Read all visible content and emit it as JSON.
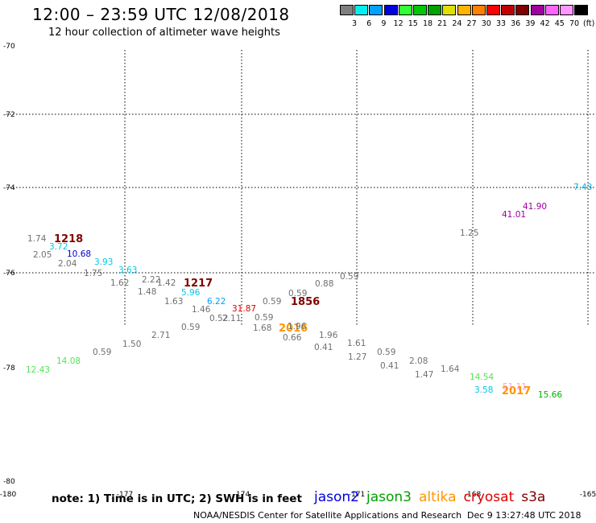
{
  "header": {
    "title": "12:00 – 23:59 UTC 12/08/2018",
    "subtitle": "12 hour collection of altimeter wave heights"
  },
  "legend": {
    "colors": [
      "#7f7f7f",
      "#00f0f0",
      "#00a0ff",
      "#0000e0",
      "#32ff32",
      "#00c800",
      "#00a000",
      "#e0e000",
      "#ffb400",
      "#ff8000",
      "#ff0000",
      "#c00000",
      "#800000",
      "#a000a0",
      "#ff64ff",
      "#ff96ff",
      "#000000"
    ],
    "labels": [
      "3",
      "6",
      "9",
      "12",
      "15",
      "18",
      "21",
      "24",
      "27",
      "30",
      "33",
      "36",
      "39",
      "42",
      "45",
      "70",
      "(ft)"
    ]
  },
  "axes": {
    "lat_labels": [
      "-70",
      "-72",
      "-74",
      "-76",
      "-78",
      "-80"
    ],
    "lon_labels": [
      "-180",
      "-177",
      "-174",
      "-171",
      "-168",
      "-165"
    ]
  },
  "observations": [
    {
      "text": "1.74",
      "color": "#707070"
    },
    {
      "text": "1218",
      "color": "#800000"
    },
    {
      "text": "3.72",
      "color": "#00c8e6"
    },
    {
      "text": "2.05",
      "color": "#707070"
    },
    {
      "text": "10.68",
      "color": "#0000c8"
    },
    {
      "text": "2.04",
      "color": "#707070"
    },
    {
      "text": "3.93",
      "color": "#00c8e6"
    },
    {
      "text": "1.75",
      "color": "#707070"
    },
    {
      "text": "3.63",
      "color": "#00c8e6"
    },
    {
      "text": "1.62",
      "color": "#707070"
    },
    {
      "text": "2.22",
      "color": "#707070"
    },
    {
      "text": "1.42",
      "color": "#707070"
    },
    {
      "text": "1217",
      "color": "#800000"
    },
    {
      "text": "1.48",
      "color": "#707070"
    },
    {
      "text": "5.96",
      "color": "#00c8e6"
    },
    {
      "text": "1.63",
      "color": "#707070"
    },
    {
      "text": "6.22",
      "color": "#00a0ff"
    },
    {
      "text": "1.46",
      "color": "#707070"
    },
    {
      "text": "0.52",
      "color": "#707070"
    },
    {
      "text": "2.11",
      "color": "#707070"
    },
    {
      "text": "31.87",
      "color": "#e00000"
    },
    {
      "text": "1856",
      "color": "#800000"
    },
    {
      "text": "0.59",
      "color": "#707070"
    },
    {
      "text": "0.59",
      "color": "#707070"
    },
    {
      "text": "0.59",
      "color": "#707070"
    },
    {
      "text": "0.88",
      "color": "#707070"
    },
    {
      "text": "0.59",
      "color": "#707070"
    },
    {
      "text": "0.59",
      "color": "#707070"
    },
    {
      "text": "1.68",
      "color": "#707070"
    },
    {
      "text": "2016",
      "color": "#ff9600"
    },
    {
      "text": "1.96",
      "color": "#707070"
    },
    {
      "text": "1.96",
      "color": "#707070"
    },
    {
      "text": "0.66",
      "color": "#707070"
    },
    {
      "text": "2.71",
      "color": "#707070"
    },
    {
      "text": "1.50",
      "color": "#707070"
    },
    {
      "text": "0.59",
      "color": "#707070"
    },
    {
      "text": "14.08",
      "color": "#50e650"
    },
    {
      "text": "12.43",
      "color": "#50e650"
    },
    {
      "text": "1.61",
      "color": "#707070"
    },
    {
      "text": "0.41",
      "color": "#707070"
    },
    {
      "text": "1.27",
      "color": "#707070"
    },
    {
      "text": "0.59",
      "color": "#707070"
    },
    {
      "text": "0.41",
      "color": "#707070"
    },
    {
      "text": "2.08",
      "color": "#707070"
    },
    {
      "text": "1.47",
      "color": "#707070"
    },
    {
      "text": "1.64",
      "color": "#707070"
    },
    {
      "text": "14.54",
      "color": "#50e650"
    },
    {
      "text": "3.58",
      "color": "#00c8e6"
    },
    {
      "text": "51.11",
      "color": "#ff96ff"
    },
    {
      "text": "2017",
      "color": "#ff9600"
    },
    {
      "text": "15.66",
      "color": "#00b400"
    },
    {
      "text": "1.25",
      "color": "#707070"
    },
    {
      "text": "41.01",
      "color": "#a000a0"
    },
    {
      "text": "41.90",
      "color": "#a000a0"
    },
    {
      "text": "7.43",
      "color": "#00b4e6"
    }
  ],
  "footer": {
    "note": "note: 1) Time is in UTC; 2) SWH is in feet",
    "satellites": [
      {
        "name": "jason2",
        "color": "#0000e0"
      },
      {
        "name": "jason3",
        "color": "#00a000"
      },
      {
        "name": "altika",
        "color": "#ff9600"
      },
      {
        "name": "cryosat",
        "color": "#e00000"
      },
      {
        "name": "s3a",
        "color": "#800000"
      }
    ],
    "credit": "NOAA/NESDIS Center for Satellite Applications and Research",
    "timestamp": "Dec  9 13:27:48 UTC 2018"
  }
}
